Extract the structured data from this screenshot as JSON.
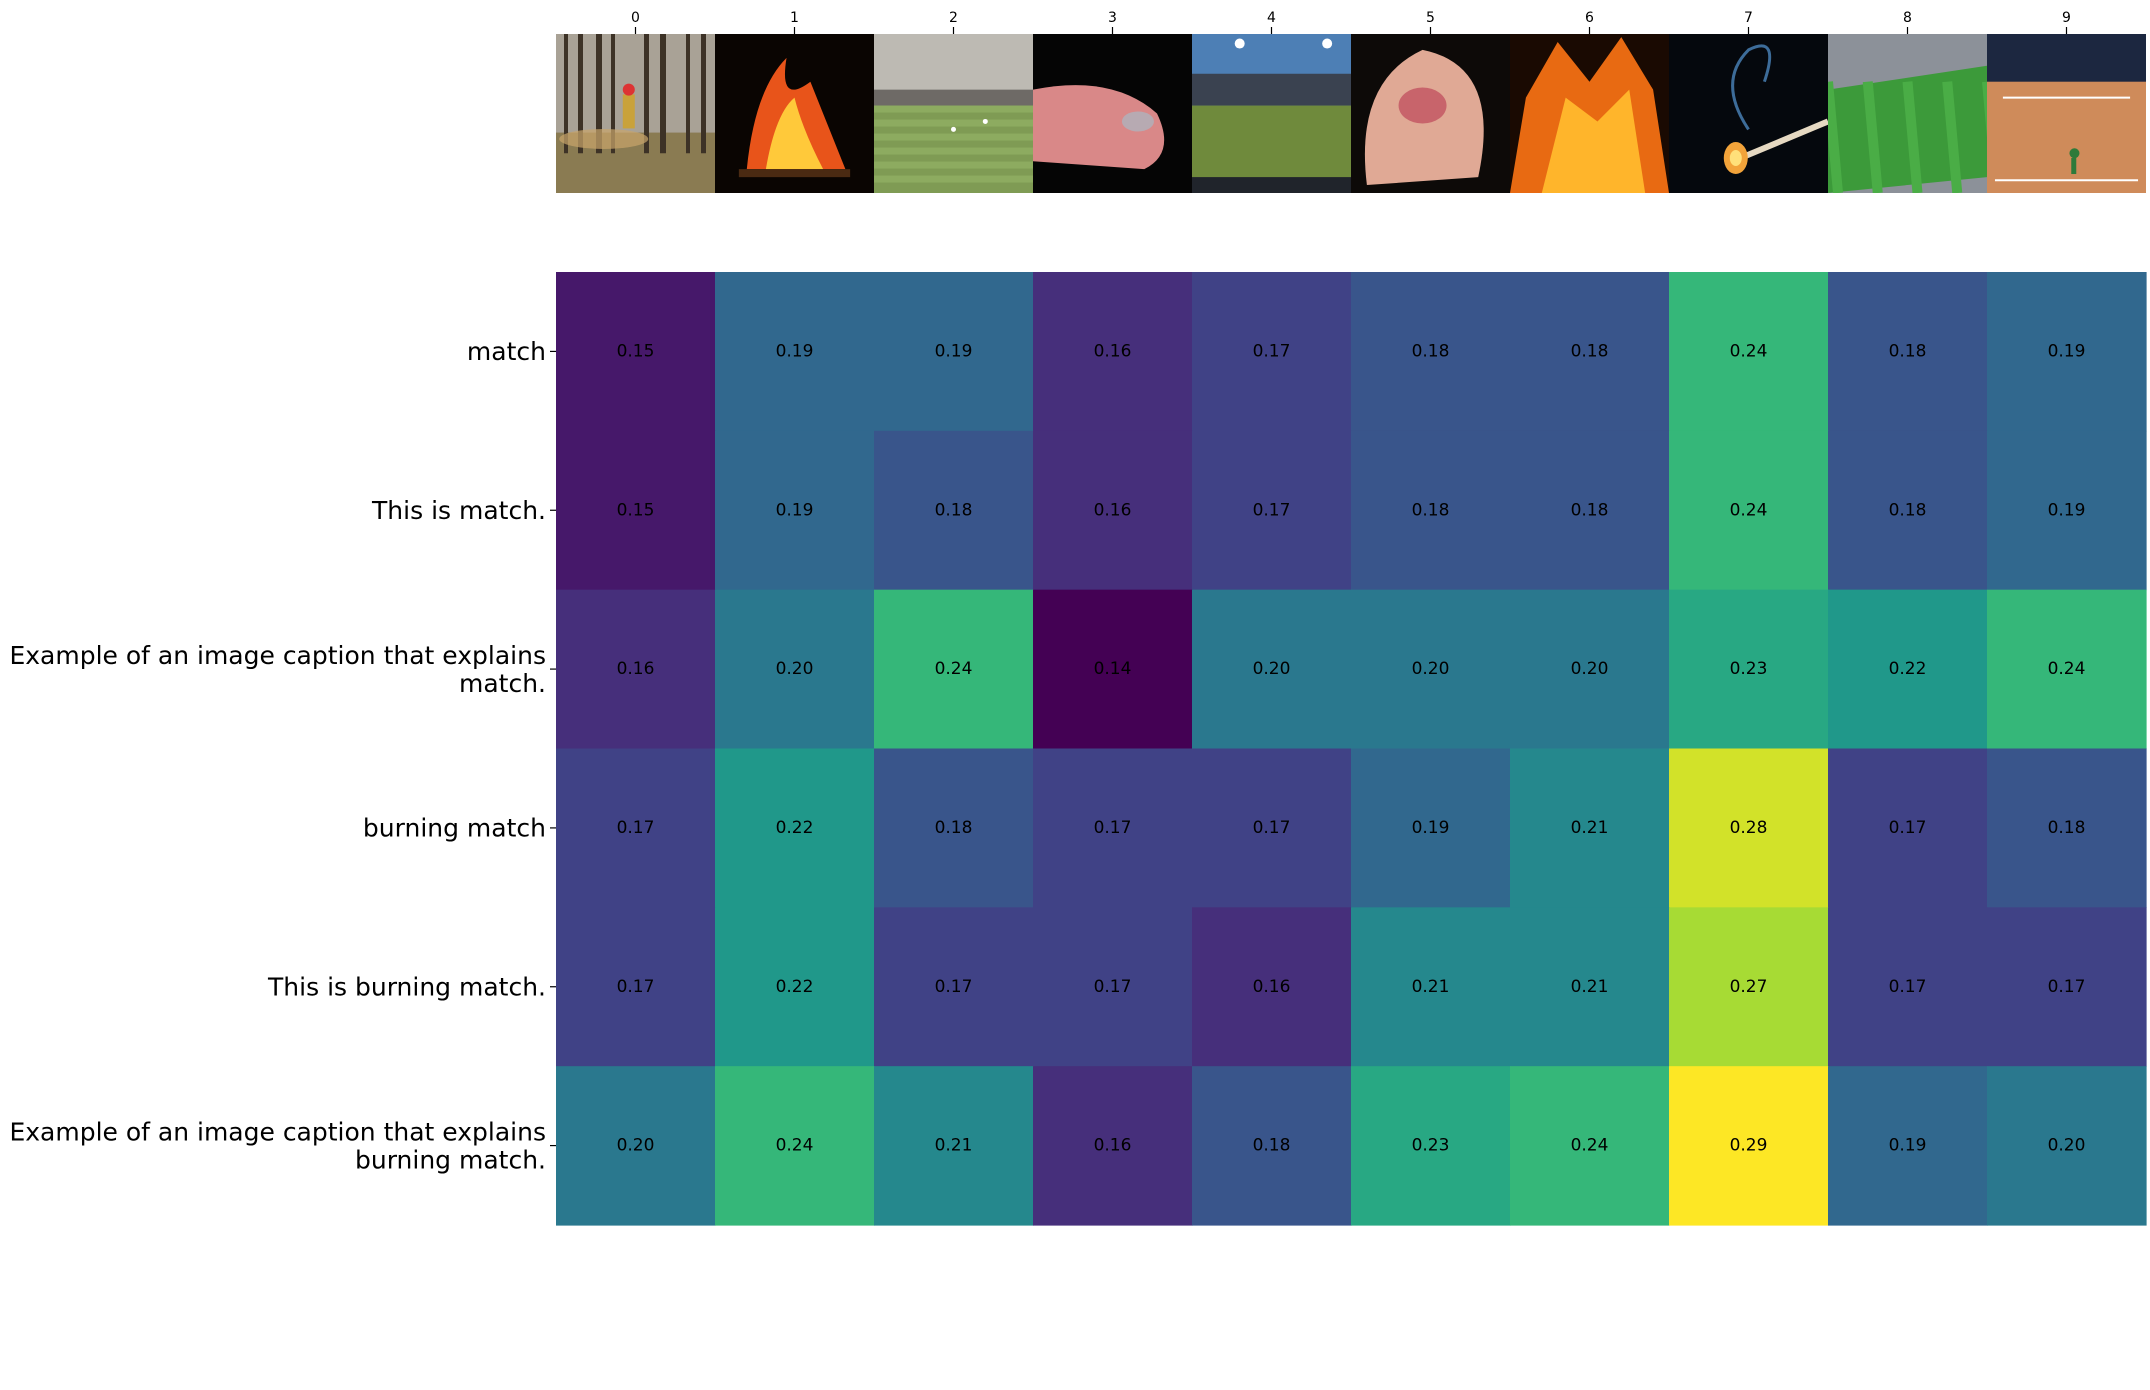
{
  "chart_data": {
    "type": "heatmap",
    "colormap": "viridis",
    "value_range": [
      0.14,
      0.29
    ],
    "columns": [
      "0",
      "1",
      "2",
      "3",
      "4",
      "5",
      "6",
      "7",
      "8",
      "9"
    ],
    "column_images": [
      "forest-fire-firefighter-image",
      "campfire-flames-image",
      "cricket-stadium-image",
      "burned-finger-image",
      "cricket-ground-night-image",
      "burned-hand-image",
      "bonfire-image",
      "burning-matchstick-image",
      "soccer-stadium-image",
      "tennis-match-image"
    ],
    "rows": [
      "match",
      "This is match.",
      "Example of an image caption that explains match.",
      "burning match",
      "This is burning match.",
      "Example of an image caption that explains burning match."
    ],
    "row_label_lines": [
      [
        "match"
      ],
      [
        "This is match."
      ],
      [
        "Example of an image caption that explains",
        "match."
      ],
      [
        "burning match"
      ],
      [
        "This is burning match."
      ],
      [
        "Example of an image caption that explains",
        "burning match."
      ]
    ],
    "values": [
      [
        0.15,
        0.19,
        0.19,
        0.16,
        0.17,
        0.18,
        0.18,
        0.24,
        0.18,
        0.19
      ],
      [
        0.15,
        0.19,
        0.18,
        0.16,
        0.17,
        0.18,
        0.18,
        0.24,
        0.18,
        0.19
      ],
      [
        0.16,
        0.2,
        0.24,
        0.14,
        0.2,
        0.2,
        0.2,
        0.23,
        0.22,
        0.24
      ],
      [
        0.17,
        0.22,
        0.18,
        0.17,
        0.17,
        0.19,
        0.21,
        0.28,
        0.17,
        0.18
      ],
      [
        0.17,
        0.22,
        0.17,
        0.17,
        0.16,
        0.21,
        0.21,
        0.27,
        0.17,
        0.17
      ],
      [
        0.2,
        0.24,
        0.21,
        0.16,
        0.18,
        0.23,
        0.24,
        0.29,
        0.19,
        0.2
      ]
    ]
  }
}
